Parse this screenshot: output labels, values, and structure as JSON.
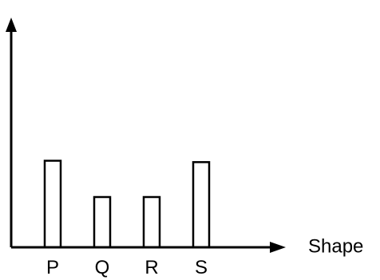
{
  "chart_data": {
    "type": "bar",
    "categories": [
      "P",
      "Q",
      "R",
      "S"
    ],
    "values": [
      3.1,
      1.8,
      1.8,
      3.05
    ],
    "ylim": [
      0,
      8
    ],
    "xlabel": "Shape",
    "ylabel": "",
    "title": "",
    "grid": false,
    "colors": {
      "bar_fill": "#ffffff",
      "stroke": "#000000"
    }
  }
}
